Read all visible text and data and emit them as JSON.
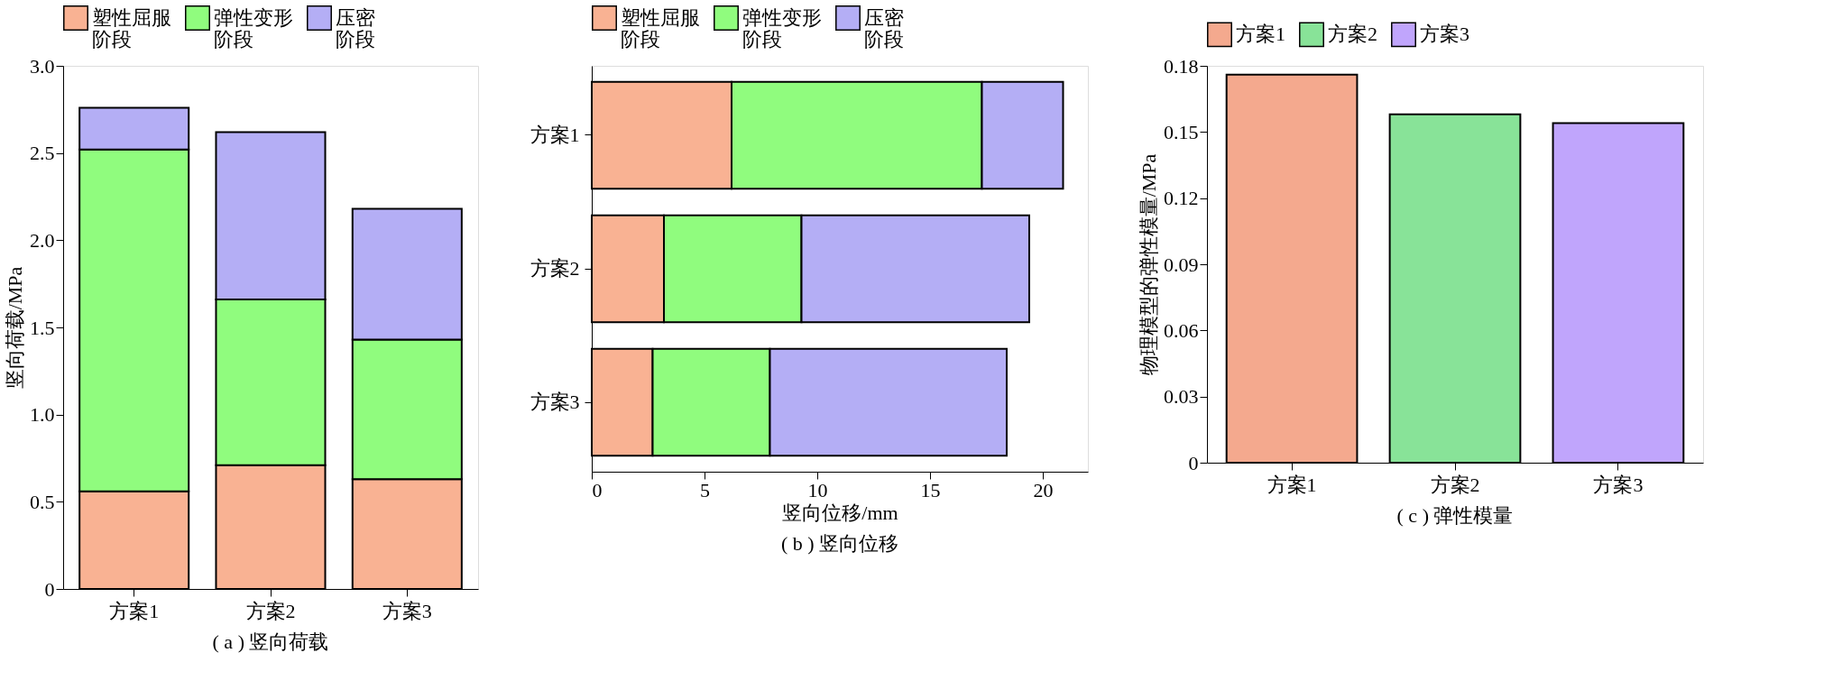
{
  "chart_data": [
    {
      "type": "bar",
      "title": "( a ) 竖向荷载",
      "ylabel": "竖向荷载/MPa",
      "stacked": true,
      "legend": "top",
      "grid": false,
      "categories": [
        "方案1",
        "方案2",
        "方案3"
      ],
      "ylim": [
        0,
        3.0
      ],
      "yticks": [
        0,
        0.5,
        {
          "value": 1,
          "label": "1.0"
        },
        1.5,
        {
          "value": 2,
          "label": "2.0"
        },
        2.5,
        {
          "value": 3,
          "label": "3.0"
        }
      ],
      "series": [
        {
          "name": "塑性屈服阶段",
          "color": "#f9b293",
          "values": [
            0.56,
            0.71,
            0.63
          ]
        },
        {
          "name": "弹性变形阶段",
          "color": "#90fc7e",
          "values": [
            1.96,
            0.95,
            0.8
          ]
        },
        {
          "name": "压密阶段",
          "color": "#b4aef5",
          "values": [
            0.24,
            0.96,
            0.75
          ]
        }
      ]
    },
    {
      "type": "bar",
      "title": "( b ) 竖向位移",
      "xlabel": "竖向位移/mm",
      "stacked": true,
      "orientation": "horizontal",
      "legend": "top",
      "grid": false,
      "categories": [
        "方案1",
        "方案2",
        "方案3"
      ],
      "xlim": [
        0,
        22
      ],
      "xticks": [
        0,
        5,
        10,
        15,
        20
      ],
      "series": [
        {
          "name": "塑性屈服阶段",
          "color": "#f9b293",
          "values": [
            6.2,
            3.2,
            2.7
          ]
        },
        {
          "name": "弹性变形阶段",
          "color": "#90fc7e",
          "values": [
            11.1,
            6.1,
            5.2
          ]
        },
        {
          "name": "压密阶段",
          "color": "#b4aef5",
          "values": [
            3.6,
            10.1,
            10.5
          ]
        }
      ]
    },
    {
      "type": "bar",
      "title": "( c ) 弹性模量",
      "ylabel": "物理模型的弹性模量/MPa",
      "legend": "top",
      "grid": false,
      "categories": [
        "方案1",
        "方案2",
        "方案3"
      ],
      "ylim": [
        0,
        0.18
      ],
      "yticks": [
        0,
        0.03,
        0.06,
        0.09,
        0.12,
        0.15,
        0.18
      ],
      "series": [
        {
          "name": "方案1",
          "color": "#f4a98e",
          "values": [
            0.176,
            null,
            null
          ]
        },
        {
          "name": "方案2",
          "color": "#88e398",
          "values": [
            null,
            0.158,
            null
          ]
        },
        {
          "name": "方案3",
          "color": "#c0a5fc",
          "values": [
            null,
            null,
            0.154
          ]
        }
      ]
    }
  ]
}
